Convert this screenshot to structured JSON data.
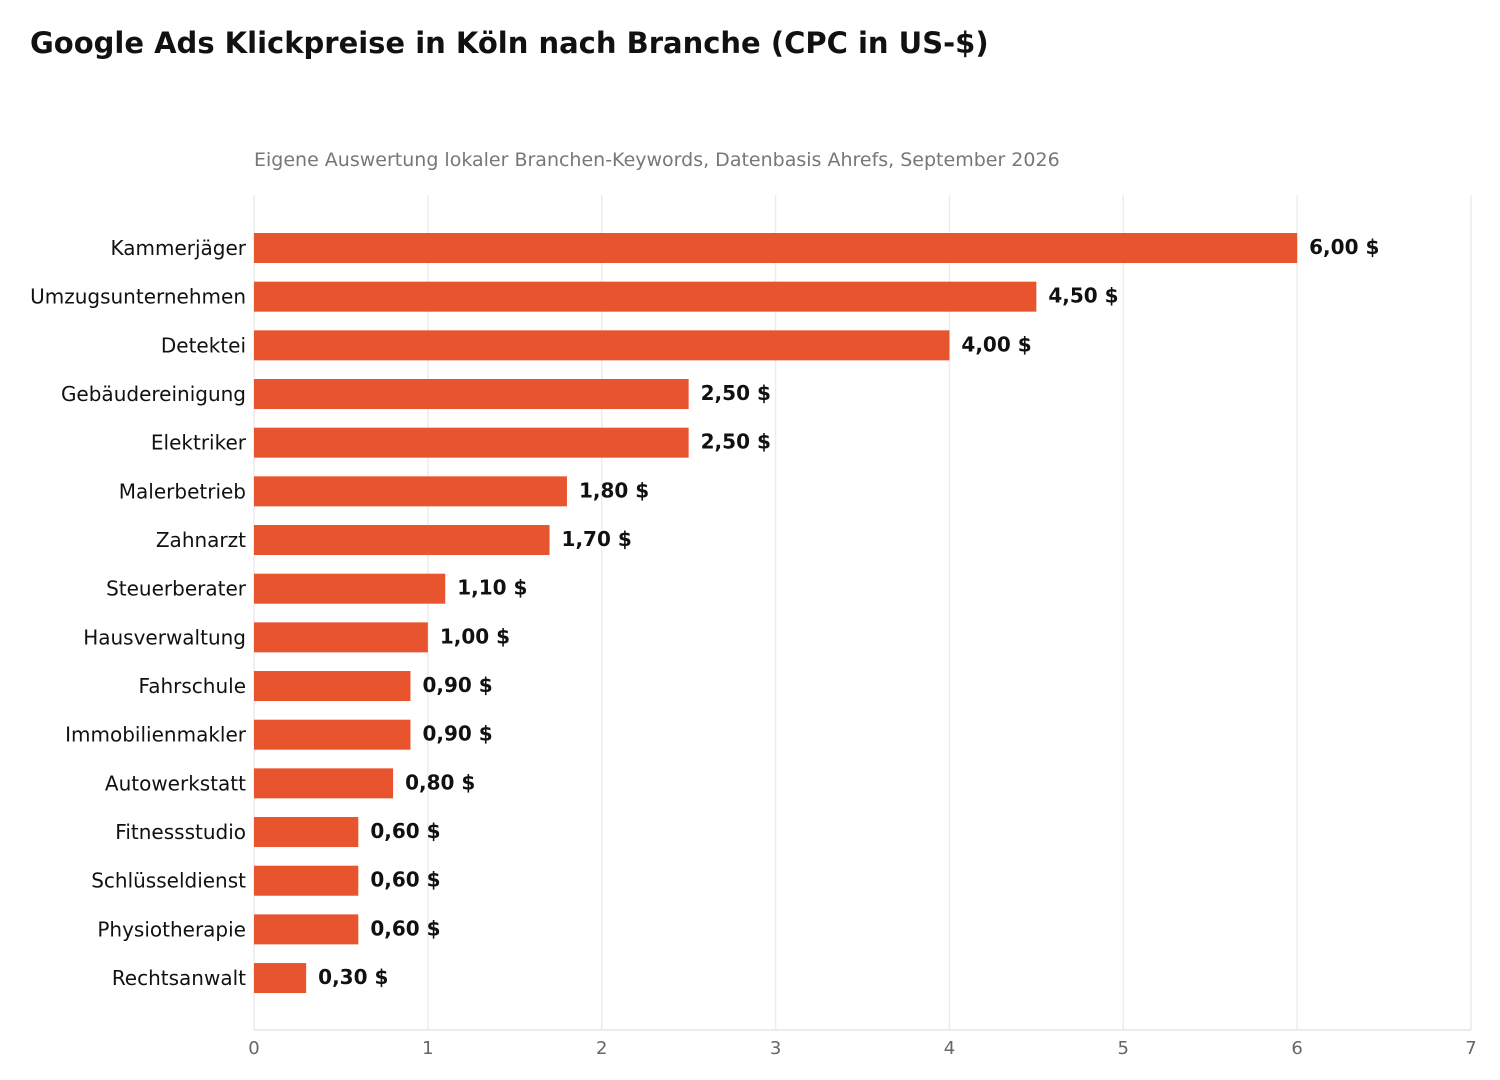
{
  "chart_data": {
    "type": "bar",
    "orientation": "horizontal",
    "title": "Google Ads Klickpreise in Köln nach Branche (CPC in US-$)",
    "subtitle": "Eigene Auswertung lokaler Branchen-Keywords, Datenbasis Ahrefs, September 2026",
    "categories": [
      "Kammerjäger",
      "Umzugsunternehmen",
      "Detektei",
      "Gebäudereinigung",
      "Elektriker",
      "Malerbetrieb",
      "Zahnarzt",
      "Steuerberater",
      "Hausverwaltung",
      "Fahrschule",
      "Immobilienmakler",
      "Autowerkstatt",
      "Fitnessstudio",
      "Schlüsseldienst",
      "Physiotherapie",
      "Rechtsanwalt"
    ],
    "values": [
      6.0,
      4.5,
      4.0,
      2.5,
      2.5,
      1.8,
      1.7,
      1.1,
      1.0,
      0.9,
      0.9,
      0.8,
      0.6,
      0.6,
      0.6,
      0.3
    ],
    "value_labels": [
      "6,00 $",
      "4,50 $",
      "4,00 $",
      "2,50 $",
      "2,50 $",
      "1,80 $",
      "1,70 $",
      "1,10 $",
      "1,00 $",
      "0,90 $",
      "0,90 $",
      "0,80 $",
      "0,60 $",
      "0,60 $",
      "0,60 $",
      "0,30 $"
    ],
    "xlim": [
      0,
      7
    ],
    "xticks": [
      "0",
      "1",
      "2",
      "3",
      "4",
      "5",
      "6",
      "7"
    ],
    "xlabel": "",
    "ylabel": "",
    "grid": "vertical",
    "colors": {
      "bar": "#e8542d",
      "grid": "#ececec",
      "axis": "#e6e6e6"
    }
  }
}
